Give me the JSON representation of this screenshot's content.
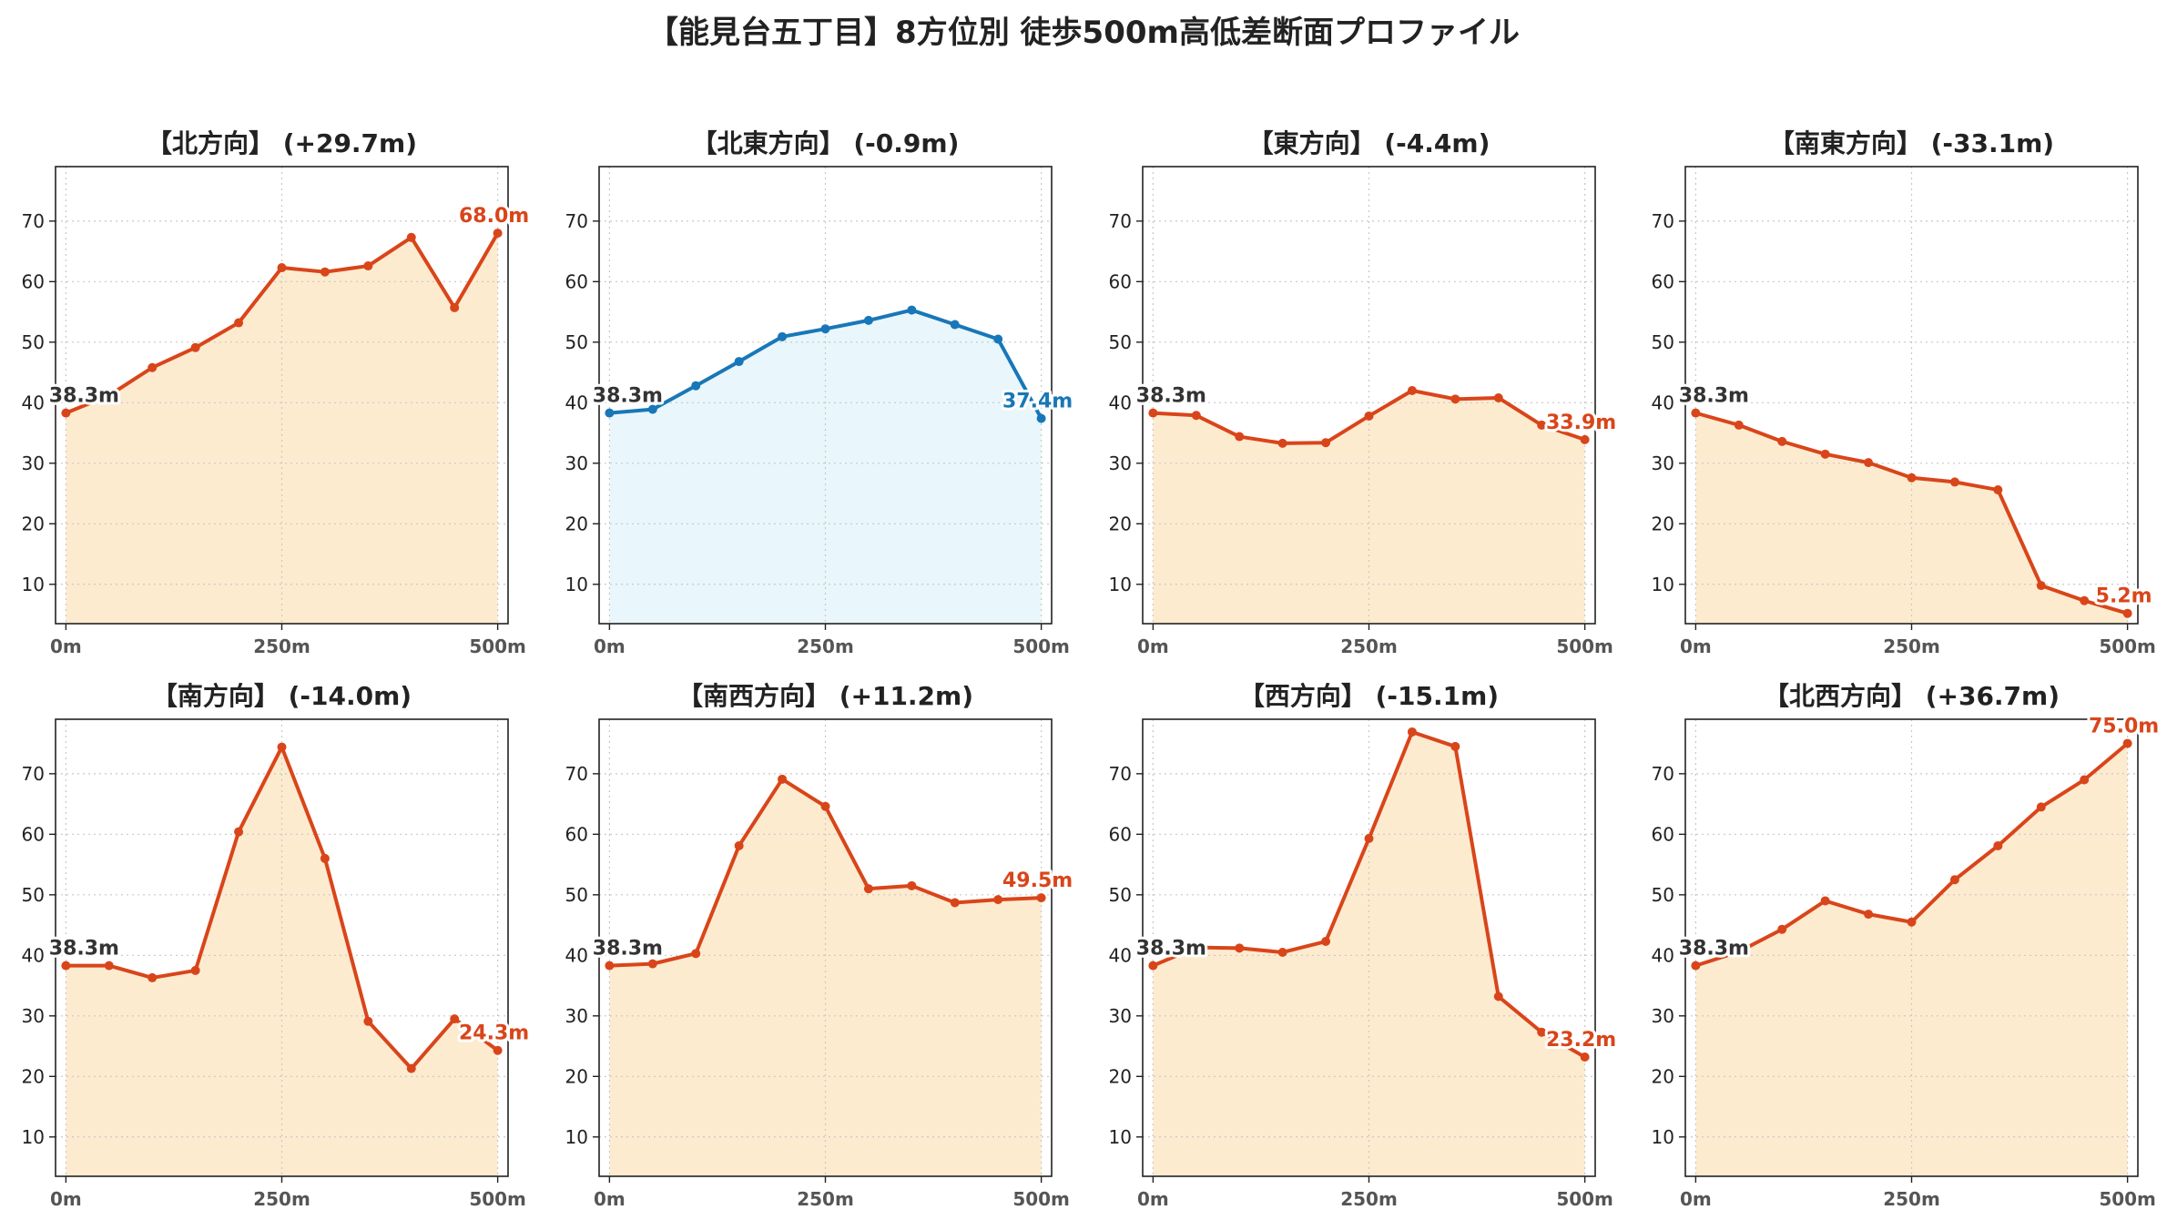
{
  "title": "【能見台五丁目】8方位別 徒歩500m高低差断面プロファイル",
  "colors": {
    "up": "#d9451a",
    "up_fill": "#fdebd0",
    "flat": "#1877b8",
    "flat_fill": "#e9f6fb",
    "start_label": "#333333",
    "grid": "#c8c8c8"
  },
  "chart_data": [
    {
      "type": "area",
      "title": "【北方向】 (+29.7m)",
      "x": [
        0,
        50,
        100,
        150,
        200,
        250,
        300,
        350,
        400,
        450,
        500
      ],
      "values": [
        38.3,
        41.2,
        45.8,
        49.1,
        53.2,
        62.3,
        61.6,
        62.6,
        67.3,
        55.7,
        68.0
      ],
      "start_label": "38.3m",
      "end_label": "68.0m",
      "xticks": [
        "0m",
        "250m",
        "500m"
      ],
      "yticks": [
        10,
        20,
        30,
        40,
        50,
        60,
        70
      ],
      "ylim": [
        3.5,
        79
      ],
      "xlim": [
        -12,
        512
      ],
      "theme": "up",
      "grid": true
    },
    {
      "type": "area",
      "title": "【北東方向】 (-0.9m)",
      "x": [
        0,
        50,
        100,
        150,
        200,
        250,
        300,
        350,
        400,
        450,
        500
      ],
      "values": [
        38.3,
        38.9,
        42.8,
        46.8,
        50.9,
        52.2,
        53.6,
        55.3,
        52.9,
        50.5,
        37.4
      ],
      "start_label": "38.3m",
      "end_label": "37.4m",
      "xticks": [
        "0m",
        "250m",
        "500m"
      ],
      "yticks": [
        10,
        20,
        30,
        40,
        50,
        60,
        70
      ],
      "ylim": [
        3.5,
        79
      ],
      "xlim": [
        -12,
        512
      ],
      "theme": "flat",
      "grid": true
    },
    {
      "type": "area",
      "title": "【東方向】 (-4.4m)",
      "x": [
        0,
        50,
        100,
        150,
        200,
        250,
        300,
        350,
        400,
        450,
        500
      ],
      "values": [
        38.3,
        37.9,
        34.4,
        33.3,
        33.4,
        37.8,
        42.0,
        40.6,
        40.8,
        36.3,
        33.9
      ],
      "start_label": "38.3m",
      "end_label": "33.9m",
      "xticks": [
        "0m",
        "250m",
        "500m"
      ],
      "yticks": [
        10,
        20,
        30,
        40,
        50,
        60,
        70
      ],
      "ylim": [
        3.5,
        79
      ],
      "xlim": [
        -12,
        512
      ],
      "theme": "up",
      "grid": true
    },
    {
      "type": "area",
      "title": "【南東方向】 (-33.1m)",
      "x": [
        0,
        50,
        100,
        150,
        200,
        250,
        300,
        350,
        400,
        450,
        500
      ],
      "values": [
        38.3,
        36.3,
        33.6,
        31.5,
        30.1,
        27.6,
        26.9,
        25.6,
        9.8,
        7.3,
        5.2
      ],
      "start_label": "38.3m",
      "end_label": "5.2m",
      "xticks": [
        "0m",
        "250m",
        "500m"
      ],
      "yticks": [
        10,
        20,
        30,
        40,
        50,
        60,
        70
      ],
      "ylim": [
        3.5,
        79
      ],
      "xlim": [
        -12,
        512
      ],
      "theme": "up",
      "grid": true
    },
    {
      "type": "area",
      "title": "【南方向】 (-14.0m)",
      "x": [
        0,
        50,
        100,
        150,
        200,
        250,
        300,
        350,
        400,
        450,
        500
      ],
      "values": [
        38.3,
        38.3,
        36.3,
        37.5,
        60.4,
        74.4,
        56.0,
        29.1,
        21.3,
        29.5,
        24.3
      ],
      "start_label": "38.3m",
      "end_label": "24.3m",
      "xticks": [
        "0m",
        "250m",
        "500m"
      ],
      "yticks": [
        10,
        20,
        30,
        40,
        50,
        60,
        70
      ],
      "ylim": [
        3.5,
        79
      ],
      "xlim": [
        -12,
        512
      ],
      "theme": "up",
      "grid": true
    },
    {
      "type": "area",
      "title": "【南西方向】 (+11.2m)",
      "x": [
        0,
        50,
        100,
        150,
        200,
        250,
        300,
        350,
        400,
        450,
        500
      ],
      "values": [
        38.3,
        38.6,
        40.3,
        58.1,
        69.1,
        64.6,
        51.0,
        51.5,
        48.7,
        49.2,
        49.5
      ],
      "start_label": "38.3m",
      "end_label": "49.5m",
      "xticks": [
        "0m",
        "250m",
        "500m"
      ],
      "yticks": [
        10,
        20,
        30,
        40,
        50,
        60,
        70
      ],
      "ylim": [
        3.5,
        79
      ],
      "xlim": [
        -12,
        512
      ],
      "theme": "up",
      "grid": true
    },
    {
      "type": "area",
      "title": "【西方向】 (-15.1m)",
      "x": [
        0,
        50,
        100,
        150,
        200,
        250,
        300,
        350,
        400,
        450,
        500
      ],
      "values": [
        38.3,
        41.3,
        41.2,
        40.5,
        42.3,
        59.3,
        76.9,
        74.5,
        33.2,
        27.3,
        23.2
      ],
      "start_label": "38.3m",
      "end_label": "23.2m",
      "xticks": [
        "0m",
        "250m",
        "500m"
      ],
      "yticks": [
        10,
        20,
        30,
        40,
        50,
        60,
        70
      ],
      "ylim": [
        3.5,
        79
      ],
      "xlim": [
        -12,
        512
      ],
      "theme": "up",
      "grid": true
    },
    {
      "type": "area",
      "title": "【北西方向】 (+36.7m)",
      "x": [
        0,
        50,
        100,
        150,
        200,
        250,
        300,
        350,
        400,
        450,
        500
      ],
      "values": [
        38.3,
        40.6,
        44.3,
        49.0,
        46.8,
        45.5,
        52.5,
        58.1,
        64.5,
        69.0,
        75.0
      ],
      "start_label": "38.3m",
      "end_label": "75.0m",
      "xticks": [
        "0m",
        "250m",
        "500m"
      ],
      "yticks": [
        10,
        20,
        30,
        40,
        50,
        60,
        70
      ],
      "ylim": [
        3.5,
        79
      ],
      "xlim": [
        -12,
        512
      ],
      "theme": "up",
      "grid": true
    }
  ]
}
